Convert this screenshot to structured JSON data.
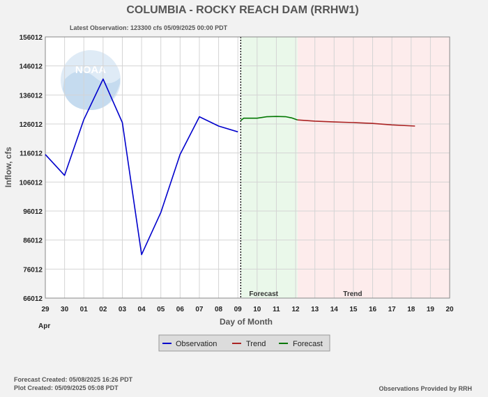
{
  "title": "COLUMBIA - ROCKY REACH DAM  (RRHW1)",
  "latest_observation": "Latest Observation: 123300 cfs 05/09/2025 00:00 PDT",
  "footer": {
    "forecast_created": "Forecast Created: 05/08/2025 16:26 PDT",
    "plot_created": "Plot Created: 05/09/2025 05:08 PDT",
    "provided_by": "Observations Provided by RRH"
  },
  "logo_text": "NOAA",
  "chart_data": {
    "type": "line",
    "ylabel": "Inflow, cfs",
    "xlabel": "Day of Month",
    "month_label": "Apr",
    "x_tick_labels": [
      "29",
      "30",
      "01",
      "02",
      "03",
      "04",
      "05",
      "06",
      "07",
      "08",
      "09",
      "10",
      "11",
      "12",
      "13",
      "14",
      "15",
      "16",
      "17",
      "18",
      "19",
      "20"
    ],
    "y_ticks": [
      66012,
      76012,
      86012,
      96012,
      106012,
      116012,
      126012,
      136012,
      146012,
      156012
    ],
    "ylim": [
      66012,
      156012
    ],
    "xlim": [
      0,
      21
    ],
    "grid": true,
    "zones": [
      {
        "label": "Forecast",
        "from": 10.15,
        "to": 13.1,
        "color": "#eaf8ea"
      },
      {
        "label": "Trend",
        "from": 13.1,
        "to": 21,
        "color": "#fdecec"
      }
    ],
    "current_marker": 10.15,
    "legend": {
      "placement": "bottom-center",
      "items": [
        {
          "label": "Observation",
          "color": "#0000cc"
        },
        {
          "label": "Trend",
          "color": "#aa2222"
        },
        {
          "label": "Forecast",
          "color": "#007700"
        }
      ]
    },
    "series": [
      {
        "name": "Observation",
        "color": "#0000cc",
        "x": [
          0,
          1,
          2,
          3,
          4,
          5,
          6,
          7,
          8,
          9,
          10
        ],
        "y": [
          115500,
          108300,
          127500,
          141500,
          126500,
          81000,
          95500,
          115500,
          128500,
          125300,
          123300
        ]
      },
      {
        "name": "Forecast",
        "color": "#007700",
        "x": [
          10.15,
          10.3,
          11,
          11.5,
          12,
          12.5,
          12.8,
          13.1
        ],
        "y": [
          127200,
          128000,
          128000,
          128500,
          128600,
          128500,
          128100,
          127400
        ]
      },
      {
        "name": "Trend",
        "color": "#aa2222",
        "x": [
          13.1,
          14,
          15,
          16,
          17,
          18,
          19.2
        ],
        "y": [
          127400,
          127000,
          126700,
          126500,
          126200,
          125700,
          125300
        ]
      }
    ]
  }
}
